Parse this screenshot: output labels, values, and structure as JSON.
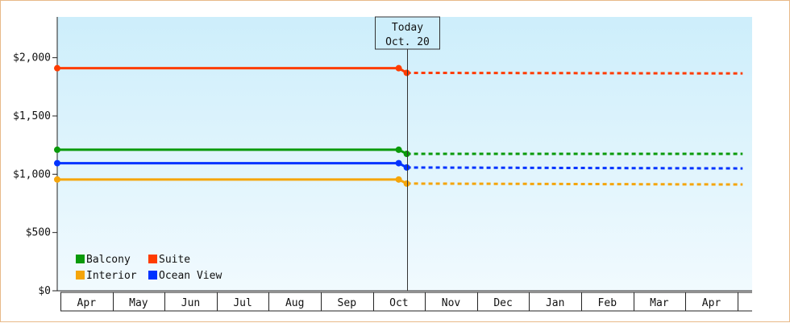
{
  "chart_data": {
    "type": "line",
    "title": "",
    "xlabel": "",
    "ylabel": "",
    "ylim": [
      0,
      2350
    ],
    "y_ticks": [
      0,
      500,
      1000,
      1500,
      2000
    ],
    "y_tick_labels": [
      "$0",
      "$500",
      "$1,000",
      "$1,500",
      "$2,000"
    ],
    "x_months": [
      "Apr",
      "May",
      "Jun",
      "Jul",
      "Aug",
      "Sep",
      "Oct",
      "Nov",
      "Dec",
      "Jan",
      "Feb",
      "Mar",
      "Apr"
    ],
    "today_label": [
      "Today",
      "Oct. 20"
    ],
    "today_month_index": 6.65,
    "grid": false,
    "legend_position": "bottom-left",
    "series": [
      {
        "name": "Balcony",
        "color": "#0a9a0a",
        "history": {
          "start": 0,
          "end": 6.65,
          "values": [
            1210,
            1210
          ]
        },
        "forecast": {
          "start": 6.65,
          "end": 13.1,
          "values": [
            1175,
            1175
          ]
        }
      },
      {
        "name": "Suite",
        "color": "#ff3c00",
        "history": {
          "start": 0,
          "end": 6.65,
          "values": [
            1910,
            1910
          ]
        },
        "forecast": {
          "start": 6.65,
          "end": 13.1,
          "values": [
            1870,
            1865
          ]
        }
      },
      {
        "name": "Interior",
        "color": "#f5a50a",
        "history": {
          "start": 0,
          "end": 6.65,
          "values": [
            955,
            955
          ]
        },
        "forecast": {
          "start": 6.65,
          "end": 13.1,
          "values": [
            920,
            912
          ]
        }
      },
      {
        "name": "Ocean View",
        "color": "#0033ff",
        "history": {
          "start": 0,
          "end": 6.65,
          "values": [
            1095,
            1095
          ]
        },
        "forecast": {
          "start": 6.65,
          "end": 13.1,
          "values": [
            1058,
            1050
          ]
        }
      }
    ]
  }
}
